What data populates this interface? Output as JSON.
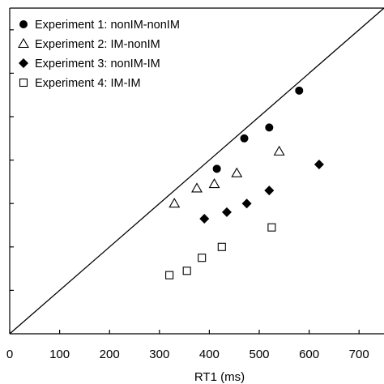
{
  "chart_data": {
    "type": "scatter",
    "xlabel": "RT1 (ms)",
    "ylabel": "",
    "xlim": [
      0,
      750
    ],
    "ylim": [
      0,
      750
    ],
    "x_ticks": [
      0,
      100,
      200,
      300,
      400,
      500,
      600,
      700
    ],
    "y_ticks": [
      100,
      200,
      300,
      400,
      500,
      600,
      700
    ],
    "reference_line": {
      "from": [
        0,
        0
      ],
      "to": [
        750,
        750
      ]
    },
    "legend_placement": "top-left",
    "grid": false,
    "series": [
      {
        "name": "Experiment 1: nonIM-nonIM",
        "marker": "circle-filled",
        "points": [
          [
            415,
            380
          ],
          [
            470,
            450
          ],
          [
            520,
            475
          ],
          [
            580,
            560
          ]
        ]
      },
      {
        "name": "Experiment 2: IM-nonIM",
        "marker": "triangle-open",
        "points": [
          [
            330,
            300
          ],
          [
            375,
            335
          ],
          [
            410,
            345
          ],
          [
            455,
            370
          ],
          [
            540,
            420
          ]
        ]
      },
      {
        "name": "Experiment 3: nonIM-IM",
        "marker": "diamond-filled",
        "points": [
          [
            390,
            265
          ],
          [
            435,
            280
          ],
          [
            475,
            300
          ],
          [
            520,
            330
          ],
          [
            620,
            390
          ]
        ]
      },
      {
        "name": "Experiment 4: IM-IM",
        "marker": "square-open",
        "points": [
          [
            320,
            135
          ],
          [
            355,
            145
          ],
          [
            385,
            175
          ],
          [
            425,
            200
          ],
          [
            525,
            245
          ]
        ]
      }
    ]
  }
}
